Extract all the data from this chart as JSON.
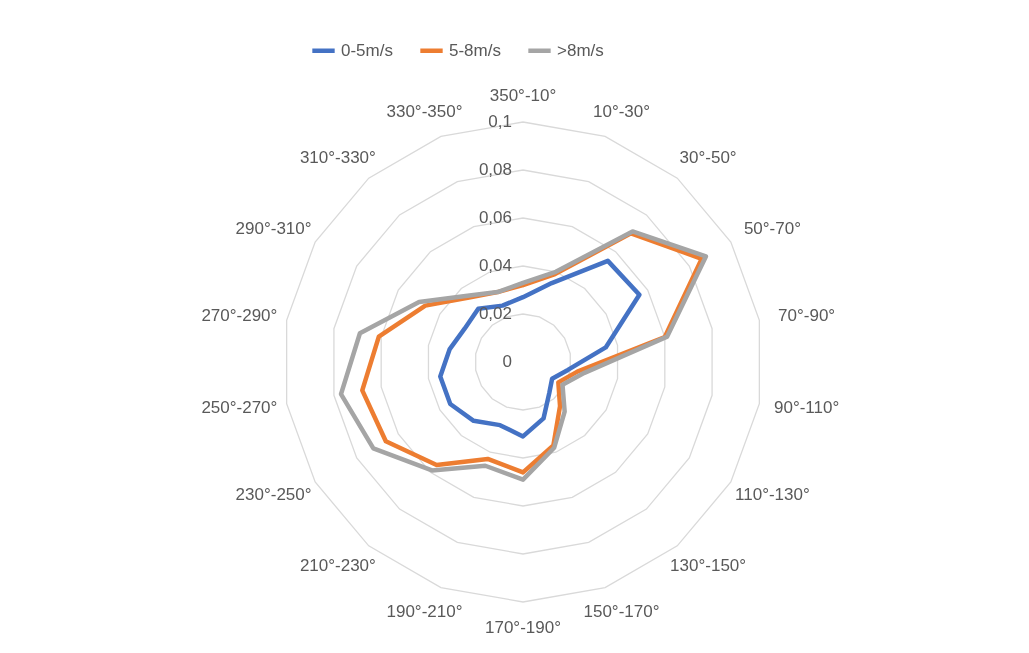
{
  "chart_data": {
    "type": "radar",
    "categories": [
      "350°-10°",
      "10°-30°",
      "30°-50°",
      "50°-70°",
      "70°-90°",
      "90°-110°",
      "110°-130°",
      "130°-150°",
      "150°-170°",
      "170°-190°",
      "190°-210°",
      "210°-230°",
      "230°-250°",
      "250°-270°",
      "270°-290°",
      "290°-310°",
      "310°-330°",
      "330°-350°"
    ],
    "series": [
      {
        "name": "0-5m/s",
        "color": "#4472c4",
        "values": [
          0.027,
          0.035,
          0.055,
          0.056,
          0.035,
          0.019,
          0.014,
          0.017,
          0.025,
          0.031,
          0.028,
          0.032,
          0.035,
          0.035,
          0.031,
          0.028,
          0.029,
          0.025
        ]
      },
      {
        "name": "5-8m/s",
        "color": "#ed7d31",
        "values": [
          0.032,
          0.039,
          0.07,
          0.086,
          0.06,
          0.023,
          0.017,
          0.024,
          0.037,
          0.046,
          0.043,
          0.056,
          0.066,
          0.068,
          0.061,
          0.047,
          0.035,
          0.031
        ]
      },
      {
        "name": ">8m/s",
        "color": "#a5a5a5",
        "values": [
          0.033,
          0.04,
          0.071,
          0.088,
          0.061,
          0.026,
          0.019,
          0.027,
          0.038,
          0.049,
          0.046,
          0.059,
          0.072,
          0.077,
          0.069,
          0.05,
          0.036,
          0.031
        ]
      }
    ],
    "ylim": [
      0,
      0.1
    ],
    "yticks": [
      0,
      {
        "value": 0.02,
        "label": "0,02"
      },
      {
        "value": 0.04,
        "label": "0,04"
      },
      {
        "value": 0.06,
        "label": "0,06"
      },
      {
        "value": 0.08,
        "label": "0,08"
      },
      {
        "value": 0.1,
        "label": "0,1"
      }
    ],
    "grid": true,
    "legend": "top",
    "marker": "none",
    "line_style": "solid"
  }
}
